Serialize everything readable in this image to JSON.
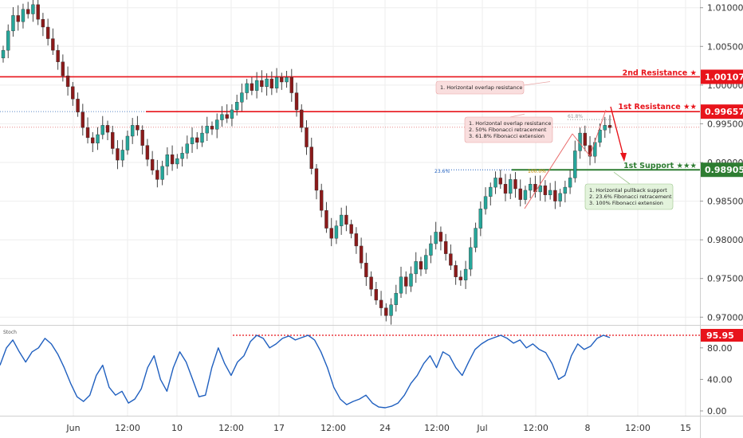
{
  "colors": {
    "resistance": "#e8141b",
    "support": "#2e7d32",
    "bull": "#26a69a",
    "bear": "#8b1a1a",
    "stoch": "#1f5fbf",
    "grid": "#eeeeee",
    "note_red_bg": "#f9dede",
    "note_green_bg": "#e3f3dc"
  },
  "stoch_label": "Stoch",
  "levels": {
    "r2": {
      "label": "2nd Resistance ★",
      "value": "1.00107",
      "price": 1.00107
    },
    "r1": {
      "label": "1st Resistance ★★",
      "value": "0.99657",
      "price": 0.99657
    },
    "s1": {
      "label": "1st Support ★★★",
      "value": "0.98905",
      "price": 0.98905
    }
  },
  "current_price": 0.99455,
  "stoch_level": {
    "value": "95.95",
    "number": 95.95
  },
  "fib_labels": {
    "f618": "61.8%",
    "f236": "23.6%",
    "f100": "100.0%"
  },
  "notes": {
    "r2_note": [
      "1. Horizontal overlap resistance"
    ],
    "r1_note": [
      "1. Horizontal overlap resistance",
      "2. 50% Fibonacci retracement",
      "3. 61.8% Fibonacci extension"
    ],
    "s1_note": [
      "1. Horizontal pullback support",
      "2. 23.6% Fibonacci retracement",
      "3. 100% Fibonacci extension"
    ]
  },
  "chart_data": [
    {
      "type": "candlestick",
      "ylim": [
        0.969,
        1.011
      ],
      "y_ticks": [
        "1.01000",
        "1.00500",
        "1.00000",
        "0.99500",
        "0.99000",
        "0.98500",
        "0.98000",
        "0.97500",
        "0.97000"
      ],
      "x_ticks": [
        "Jun",
        "12:00",
        "10",
        "12:00",
        "17",
        "12:00",
        "24",
        "12:00",
        "Jul",
        "12:00",
        "8",
        "12:00",
        "15"
      ],
      "close": [
        1.0045,
        1.007,
        1.009,
        1.0082,
        1.0098,
        1.0092,
        1.0104,
        1.0085,
        1.0075,
        1.006,
        1.0045,
        1.003,
        1.0012,
        0.9998,
        0.9982,
        0.9965,
        0.9945,
        0.9932,
        0.9925,
        0.9936,
        0.9948,
        0.9939,
        0.9918,
        0.9903,
        0.9916,
        0.9934,
        0.9948,
        0.9942,
        0.9922,
        0.9904,
        0.989,
        0.9878,
        0.9895,
        0.991,
        0.9898,
        0.9905,
        0.9912,
        0.9924,
        0.9932,
        0.9926,
        0.9938,
        0.9947,
        0.9943,
        0.9955,
        0.9962,
        0.9957,
        0.9968,
        0.9978,
        0.999,
        1.0002,
        0.9993,
        1.0006,
        0.9998,
        1.0008,
        0.9996,
        1.001,
        1.0004,
        1.001,
        0.999,
        0.9968,
        0.9945,
        0.992,
        0.9892,
        0.9864,
        0.9838,
        0.9815,
        0.9802,
        0.9818,
        0.9832,
        0.982,
        0.9808,
        0.9792,
        0.977,
        0.9752,
        0.9736,
        0.9722,
        0.9712,
        0.9702,
        0.9716,
        0.9731,
        0.9752,
        0.974,
        0.9756,
        0.9772,
        0.9762,
        0.978,
        0.9795,
        0.981,
        0.9798,
        0.9782,
        0.9767,
        0.9752,
        0.9748,
        0.9762,
        0.979,
        0.9815,
        0.984,
        0.9856,
        0.9868,
        0.988,
        0.9872,
        0.986,
        0.9878,
        0.9866,
        0.9852,
        0.9864,
        0.9872,
        0.9862,
        0.987,
        0.9858,
        0.9864,
        0.985,
        0.986,
        0.9868,
        0.988,
        0.9915,
        0.9938,
        0.9922,
        0.9908,
        0.9926,
        0.9942,
        0.9948,
        0.9945
      ]
    },
    {
      "type": "line",
      "name": "Stoch",
      "ylim": [
        0,
        100
      ],
      "y_ticks": [
        "80.00",
        "40.00",
        "0.00"
      ],
      "values": [
        58,
        80,
        90,
        75,
        62,
        75,
        80,
        92,
        85,
        72,
        55,
        35,
        18,
        12,
        20,
        45,
        58,
        30,
        20,
        25,
        10,
        15,
        28,
        55,
        70,
        40,
        25,
        55,
        75,
        62,
        40,
        18,
        20,
        55,
        80,
        60,
        45,
        62,
        70,
        88,
        96,
        92,
        80,
        85,
        92,
        95,
        90,
        93,
        96,
        90,
        75,
        55,
        30,
        15,
        8,
        12,
        15,
        20,
        10,
        5,
        4,
        6,
        10,
        20,
        35,
        45,
        60,
        70,
        55,
        75,
        70,
        55,
        45,
        62,
        78,
        85,
        90,
        93,
        96,
        92,
        86,
        90,
        80,
        85,
        78,
        74,
        60,
        40,
        45,
        70,
        85,
        78,
        82,
        92,
        96,
        93
      ]
    }
  ]
}
